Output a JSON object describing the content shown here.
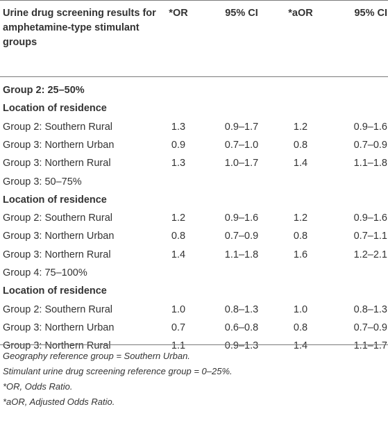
{
  "table": {
    "header": {
      "col0": "Urine drug screening results for amphetamine-type stimulant groups",
      "col1": "*OR",
      "col2": "95% CI",
      "col3": "*aOR",
      "col4": "95% CI"
    },
    "rows": [
      {
        "label": "Group 2: 25–50%",
        "or": "",
        "ci": "",
        "aor": "",
        "aci": "",
        "bold": true
      },
      {
        "label": "Location of residence",
        "or": "",
        "ci": "",
        "aor": "",
        "aci": "",
        "bold": true
      },
      {
        "label": "Group 2: Southern Rural",
        "or": "1.3",
        "ci": "0.9–1.7",
        "aor": "1.2",
        "aci": "0.9–1.6"
      },
      {
        "label": "Group 3: Northern Urban",
        "or": "0.9",
        "ci": "0.7–1.0",
        "aor": "0.8",
        "aci": "0.7–0.9"
      },
      {
        "label": "Group 3: Northern Rural",
        "or": "1.3",
        "ci": "1.0–1.7",
        "aor": "1.4",
        "aci": "1.1–1.8"
      },
      {
        "label": "Group 3: 50–75%",
        "or": "",
        "ci": "",
        "aor": "",
        "aci": ""
      },
      {
        "label": "Location of residence",
        "or": "",
        "ci": "",
        "aor": "",
        "aci": "",
        "bold": true
      },
      {
        "label": "Group 2: Southern Rural",
        "or": "1.2",
        "ci": "0.9–1.6",
        "aor": "1.2",
        "aci": "0.9–1.6"
      },
      {
        "label": "Group 3: Northern Urban",
        "or": "0.8",
        "ci": "0.7–0.9",
        "aor": "0.8",
        "aci": "0.7–1.1"
      },
      {
        "label": "Group 3: Northern Rural",
        "or": "1.4",
        "ci": "1.1–1.8",
        "aor": "1.6",
        "aci": "1.2–2.1"
      },
      {
        "label": "Group 4: 75–100%",
        "or": "",
        "ci": "",
        "aor": "",
        "aci": ""
      },
      {
        "label": "Location of residence",
        "or": "",
        "ci": "",
        "aor": "",
        "aci": "",
        "bold": true
      },
      {
        "label": "Group 2: Southern Rural",
        "or": "1.0",
        "ci": "0.8–1.3",
        "aor": "1.0",
        "aci": "0.8–1.3"
      },
      {
        "label": "Group 3: Northern Urban",
        "or": "0.7",
        "ci": "0.6–0.8",
        "aor": "0.8",
        "aci": "0.7–0.9"
      },
      {
        "label": "Group 3: Northern Rural",
        "or": "1.1",
        "ci": "0.9–1.3",
        "aor": "1.4",
        "aci": "1.1–1.7"
      }
    ]
  },
  "notes": [
    "Geography reference group = Southern Urban.",
    "Stimulant urine drug screening reference group = 0–25%.",
    "*OR, Odds Ratio.",
    "*aOR, Adjusted Odds Ratio."
  ]
}
